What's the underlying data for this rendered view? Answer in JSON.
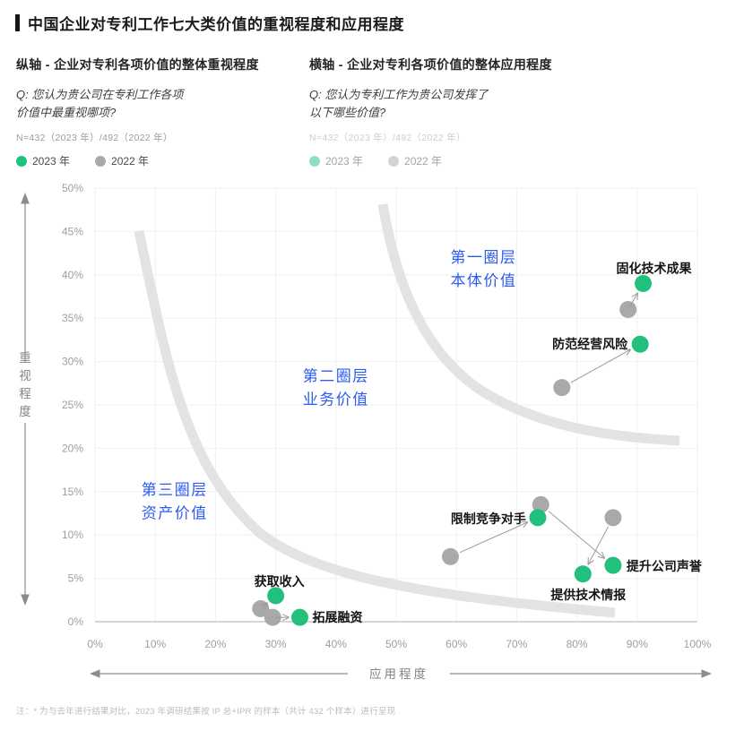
{
  "title": "中国企业对专利工作七大类价值的重视程度和应用程度",
  "columns": [
    {
      "heading": "纵轴 - 企业对专利各项价值的整体重视程度",
      "question_line1": "Q: 您认为贵公司在专利工作各项",
      "question_line2": "价值中最重视哪项?",
      "sample": "N=432（2023 年）/492（2022 年）",
      "legend": [
        "2023 年",
        "2022 年"
      ]
    },
    {
      "heading": "横轴 - 企业对专利各项价值的整体应用程度",
      "question_line1": "Q: 您认为专利工作为贵公司发挥了",
      "question_line2": "以下哪些价值?",
      "sample": "N=432（2023 年）/492（2022 年）",
      "legend": [
        "2023 年",
        "2022 年"
      ]
    }
  ],
  "chart_data": {
    "type": "scatter",
    "xlabel": "应用程度",
    "ylabel": "重视程度",
    "xlim": [
      0,
      100
    ],
    "ylim": [
      0,
      50
    ],
    "grid": true,
    "x_ticks": [
      "0%",
      "10%",
      "20%",
      "30%",
      "40%",
      "50%",
      "60%",
      "70%",
      "80%",
      "90%",
      "100%"
    ],
    "y_ticks": [
      "0%",
      "5%",
      "10%",
      "15%",
      "20%",
      "25%",
      "30%",
      "35%",
      "40%",
      "45%",
      "50%"
    ],
    "series": [
      {
        "name": "2023 年",
        "color": "#21c17d"
      },
      {
        "name": "2022 年",
        "color": "#a9a9a9"
      }
    ],
    "points": [
      {
        "label": "固化技术成果",
        "v2023": [
          91,
          39
        ],
        "v2022": [
          88.5,
          36
        ]
      },
      {
        "label": "防范经营风险",
        "v2023": [
          90.5,
          32
        ],
        "v2022": [
          77.5,
          27
        ]
      },
      {
        "label": "限制竞争对手",
        "v2023": [
          73.5,
          12
        ],
        "v2022": [
          59,
          7.5
        ]
      },
      {
        "label": "提升公司声誉",
        "v2023": [
          86,
          6.5
        ],
        "v2022": [
          74,
          13.5
        ]
      },
      {
        "label": "提供技术情报",
        "v2023": [
          81,
          5.5
        ],
        "v2022": [
          86,
          12
        ]
      },
      {
        "label": "获取收入",
        "v2023": [
          30,
          3
        ],
        "v2022": [
          27.5,
          1.5
        ]
      },
      {
        "label": "拓展融资",
        "v2023": [
          34,
          0.5
        ],
        "v2022": [
          29.5,
          0.5
        ]
      }
    ],
    "tiers": [
      {
        "line1": "第一圈层",
        "line2": "本体价值",
        "x": 64.5,
        "y": 41
      },
      {
        "line1": "第二圈层",
        "line2": "业务价值",
        "x": 40,
        "y": 27.3
      },
      {
        "line1": "第三圈层",
        "line2": "资产价值",
        "x": 13.2,
        "y": 14.2
      }
    ],
    "tier_color": "#2e5bf0",
    "arc_color": "#e3e3e3",
    "grid_color": "#f0f0f0",
    "axis_line_color": "#c9c9c9",
    "tick_color": "#9e9e9e",
    "arrow_color": "#9a9a9a",
    "axis_label_color": "#828282",
    "point_label_color": "#141414"
  },
  "footnote": "注：* 为与去年进行结果对比，2023 年调研结果按 IP 总+IPR 的样本（共计 432 个样本）进行呈现"
}
